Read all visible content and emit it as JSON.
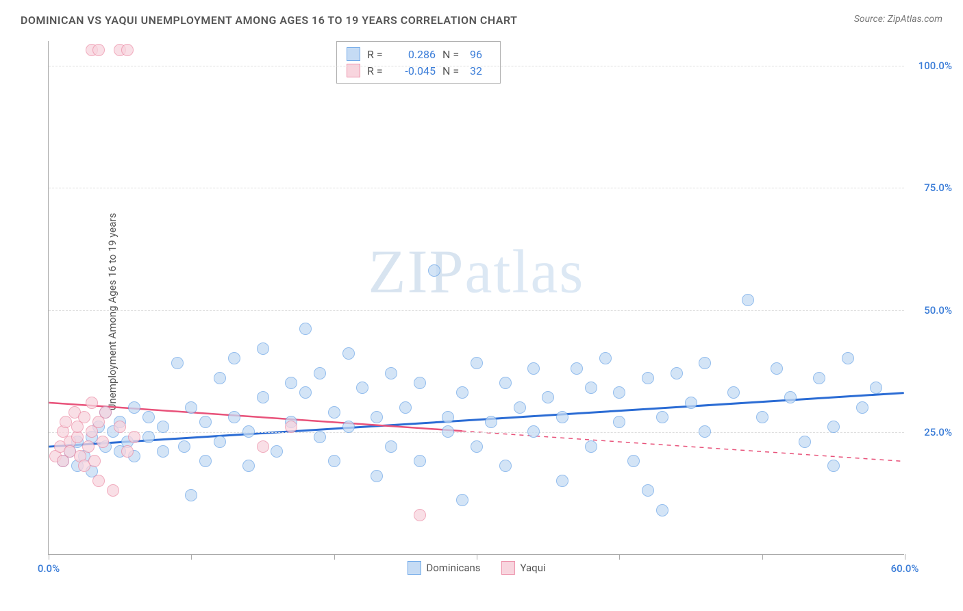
{
  "header": {
    "title": "DOMINICAN VS YAQUI UNEMPLOYMENT AMONG AGES 16 TO 19 YEARS CORRELATION CHART",
    "source": "Source: ZipAtlas.com"
  },
  "chart": {
    "type": "scatter",
    "y_axis_label": "Unemployment Among Ages 16 to 19 years",
    "watermark": "ZIPatlas",
    "xlim": [
      0,
      60
    ],
    "ylim": [
      0,
      105
    ],
    "x_ticks": [
      0,
      10,
      20,
      30,
      40,
      50,
      60
    ],
    "x_tick_labels": {
      "0": "0.0%",
      "60": "60.0%"
    },
    "y_ticks": [
      25,
      50,
      75,
      100
    ],
    "y_tick_labels": {
      "25": "25.0%",
      "50": "50.0%",
      "75": "75.0%",
      "100": "100.0%"
    },
    "tick_color": "#3b7dd8",
    "grid_color": "#dddddd",
    "background_color": "#ffffff",
    "series": [
      {
        "name": "Dominicans",
        "fill": "#c5dbf4",
        "stroke": "#6fa8e8",
        "marker_radius": 9,
        "marker_opacity": 0.75,
        "R": "0.286",
        "N": "96",
        "trend": {
          "x1": 0,
          "y1": 22,
          "x2": 60,
          "y2": 33,
          "color": "#2b6cd4",
          "width": 3,
          "dash_after_x": null
        },
        "points": [
          [
            1,
            19
          ],
          [
            1.5,
            21
          ],
          [
            2,
            18
          ],
          [
            2,
            23
          ],
          [
            2.5,
            20
          ],
          [
            3,
            17
          ],
          [
            3,
            24
          ],
          [
            3.5,
            26
          ],
          [
            4,
            22
          ],
          [
            4,
            29
          ],
          [
            4.5,
            25
          ],
          [
            5,
            21
          ],
          [
            5,
            27
          ],
          [
            5.5,
            23
          ],
          [
            6,
            20
          ],
          [
            6,
            30
          ],
          [
            7,
            28
          ],
          [
            7,
            24
          ],
          [
            8,
            26
          ],
          [
            8,
            21
          ],
          [
            9,
            39
          ],
          [
            9.5,
            22
          ],
          [
            10,
            30
          ],
          [
            10,
            12
          ],
          [
            11,
            27
          ],
          [
            11,
            19
          ],
          [
            12,
            36
          ],
          [
            12,
            23
          ],
          [
            13,
            28
          ],
          [
            13,
            40
          ],
          [
            14,
            25
          ],
          [
            14,
            18
          ],
          [
            15,
            32
          ],
          [
            15,
            42
          ],
          [
            16,
            21
          ],
          [
            17,
            35
          ],
          [
            17,
            27
          ],
          [
            18,
            33
          ],
          [
            18,
            46
          ],
          [
            19,
            24
          ],
          [
            19,
            37
          ],
          [
            20,
            29
          ],
          [
            20,
            19
          ],
          [
            21,
            41
          ],
          [
            21,
            26
          ],
          [
            22,
            34
          ],
          [
            23,
            16
          ],
          [
            23,
            28
          ],
          [
            24,
            37
          ],
          [
            24,
            22
          ],
          [
            25,
            30
          ],
          [
            26,
            35
          ],
          [
            26,
            19
          ],
          [
            27,
            58
          ],
          [
            28,
            28
          ],
          [
            28,
            25
          ],
          [
            29,
            33
          ],
          [
            29,
            11
          ],
          [
            30,
            39
          ],
          [
            30,
            22
          ],
          [
            31,
            27
          ],
          [
            32,
            35
          ],
          [
            32,
            18
          ],
          [
            33,
            30
          ],
          [
            34,
            38
          ],
          [
            34,
            25
          ],
          [
            35,
            32
          ],
          [
            36,
            15
          ],
          [
            36,
            28
          ],
          [
            37,
            38
          ],
          [
            38,
            34
          ],
          [
            38,
            22
          ],
          [
            39,
            40
          ],
          [
            40,
            27
          ],
          [
            40,
            33
          ],
          [
            41,
            19
          ],
          [
            42,
            36
          ],
          [
            43,
            28
          ],
          [
            43,
            9
          ],
          [
            44,
            37
          ],
          [
            45,
            31
          ],
          [
            46,
            25
          ],
          [
            46,
            39
          ],
          [
            48,
            33
          ],
          [
            49,
            52
          ],
          [
            50,
            28
          ],
          [
            51,
            38
          ],
          [
            52,
            32
          ],
          [
            53,
            23
          ],
          [
            54,
            36
          ],
          [
            55,
            26
          ],
          [
            56,
            40
          ],
          [
            57,
            30
          ],
          [
            58,
            34
          ],
          [
            55,
            18
          ],
          [
            42,
            13
          ]
        ]
      },
      {
        "name": "Yaqui",
        "fill": "#f8d5de",
        "stroke": "#ec8fa8",
        "marker_radius": 9,
        "marker_opacity": 0.75,
        "R": "-0.045",
        "N": "32",
        "trend": {
          "x1": 0,
          "y1": 31,
          "x2": 60,
          "y2": 19,
          "color": "#e8527a",
          "width": 2.5,
          "dash_after_x": 29
        },
        "points": [
          [
            0.5,
            20
          ],
          [
            0.8,
            22
          ],
          [
            1,
            25
          ],
          [
            1,
            19
          ],
          [
            1.2,
            27
          ],
          [
            1.5,
            23
          ],
          [
            1.5,
            21
          ],
          [
            1.8,
            29
          ],
          [
            2,
            24
          ],
          [
            2,
            26
          ],
          [
            2.2,
            20
          ],
          [
            2.5,
            18
          ],
          [
            2.5,
            28
          ],
          [
            2.8,
            22
          ],
          [
            3,
            31
          ],
          [
            3,
            25
          ],
          [
            3.2,
            19
          ],
          [
            3.5,
            27
          ],
          [
            3.5,
            15
          ],
          [
            3.8,
            23
          ],
          [
            4,
            29
          ],
          [
            4.5,
            13
          ],
          [
            5,
            26
          ],
          [
            5.5,
            21
          ],
          [
            6,
            24
          ],
          [
            3,
            103
          ],
          [
            3.5,
            103
          ],
          [
            5,
            103
          ],
          [
            5.5,
            103
          ],
          [
            15,
            22
          ],
          [
            17,
            26
          ],
          [
            26,
            8
          ]
        ]
      }
    ],
    "legend": [
      "Dominicans",
      "Yaqui"
    ],
    "stats_label_R": "R =",
    "stats_label_N": "N =",
    "stats_value_color": "#3b7dd8"
  }
}
